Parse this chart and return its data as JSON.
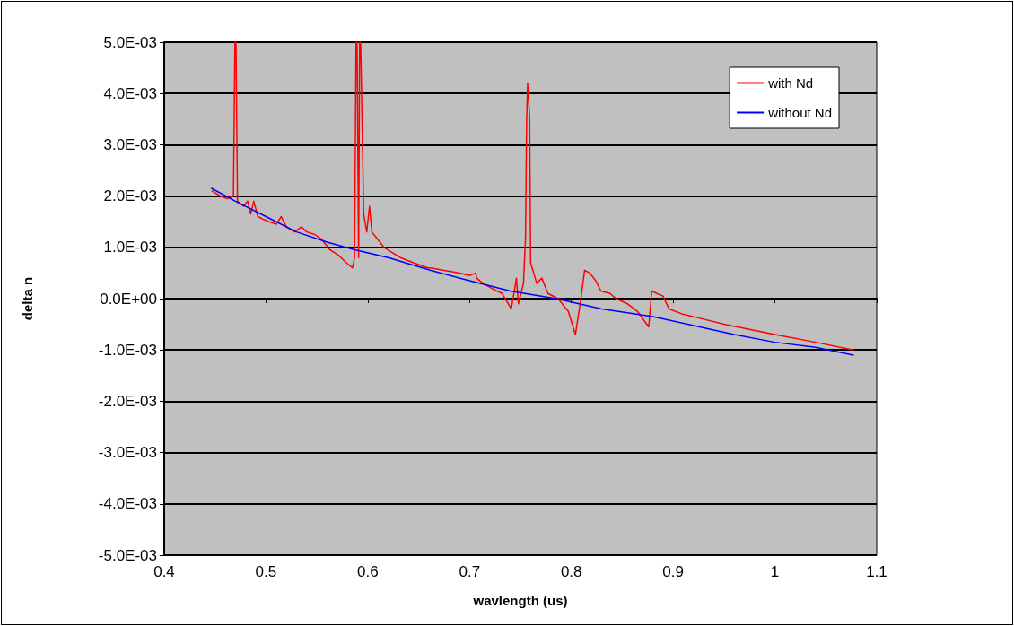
{
  "chart_data": {
    "type": "line",
    "xlabel": "wavlength (us)",
    "ylabel": "delta n",
    "xlim": [
      0.4,
      1.1
    ],
    "xticks": [
      0.4,
      0.5,
      0.6,
      0.7,
      0.8,
      0.9,
      1,
      1.1
    ],
    "ylim": [
      -0.005,
      0.005
    ],
    "yticks": [
      {
        "value": -0.005,
        "label": "-5.0E-03"
      },
      {
        "value": -0.004,
        "label": "-4.0E-03"
      },
      {
        "value": -0.003,
        "label": "-3.0E-03"
      },
      {
        "value": -0.002,
        "label": "-2.0E-03"
      },
      {
        "value": -0.001,
        "label": "-1.0E-03"
      },
      {
        "value": 0,
        "label": "0.0E+00"
      },
      {
        "value": 0.001,
        "label": "1.0E-03"
      },
      {
        "value": 0.002,
        "label": "2.0E-03"
      },
      {
        "value": 0.003,
        "label": "3.0E-03"
      },
      {
        "value": 0.004,
        "label": "4.0E-03"
      },
      {
        "value": 0.005,
        "label": "5.0E-03"
      }
    ],
    "grid": "y",
    "legend": "top right",
    "marker": "none",
    "line_style": "solid",
    "series": [
      {
        "name": "with Nd",
        "color": "#ff0000",
        "x": [
          0.447,
          0.455,
          0.462,
          0.468,
          0.4695,
          0.4705,
          0.472,
          0.478,
          0.482,
          0.485,
          0.488,
          0.492,
          0.497,
          0.503,
          0.51,
          0.515,
          0.52,
          0.528,
          0.535,
          0.54,
          0.548,
          0.555,
          0.563,
          0.571,
          0.579,
          0.585,
          0.587,
          0.5885,
          0.5895,
          0.591,
          0.592,
          0.593,
          0.596,
          0.599,
          0.6017,
          0.604,
          0.61,
          0.616,
          0.624,
          0.632,
          0.645,
          0.659,
          0.662,
          0.675,
          0.69,
          0.7,
          0.706,
          0.707,
          0.713,
          0.722,
          0.732,
          0.741,
          0.744,
          0.746,
          0.748,
          0.753,
          0.755,
          0.756,
          0.757,
          0.759,
          0.76,
          0.766,
          0.771,
          0.777,
          0.787,
          0.797,
          0.804,
          0.809,
          0.813,
          0.818,
          0.824,
          0.829,
          0.838,
          0.844,
          0.855,
          0.865,
          0.876,
          0.879,
          0.884,
          0.89,
          0.896,
          0.909,
          0.93,
          0.95,
          0.975,
          1.0,
          1.04,
          1.077
        ],
        "values": [
          0.0021,
          0.002,
          0.00195,
          0.002,
          0.005,
          0.005,
          0.0019,
          0.0018,
          0.0019,
          0.00165,
          0.0019,
          0.0016,
          0.00155,
          0.0015,
          0.00145,
          0.0016,
          0.0014,
          0.0013,
          0.0014,
          0.0013,
          0.00125,
          0.00115,
          0.00095,
          0.00085,
          0.0007,
          0.0006,
          0.0008,
          0.005,
          0.005,
          0.0008,
          0.005,
          0.005,
          0.00165,
          0.0013,
          0.0018,
          0.0013,
          0.00115,
          0.001,
          0.0009,
          0.0008,
          0.0007,
          0.0006,
          0.0006,
          0.00055,
          0.0005,
          0.00045,
          0.0005,
          0.0004,
          0.0003,
          0.0002,
          0.0001,
          -0.0002,
          0.00015,
          0.0004,
          -0.0001,
          0.0003,
          0.0012,
          0.0034,
          0.0042,
          0.00355,
          0.0007,
          0.0003,
          0.0004,
          0.0001,
          0.0,
          -0.00025,
          -0.0007,
          -5e-05,
          0.00055,
          0.0005,
          0.00035,
          0.00015,
          0.0001,
          0.0,
          -0.0001,
          -0.00025,
          -0.00055,
          0.00015,
          0.0001,
          5e-05,
          -0.0002,
          -0.0003,
          -0.0004,
          -0.0005,
          -0.0006,
          -0.0007,
          -0.00085,
          -0.001
        ]
      },
      {
        "name": "without Nd",
        "color": "#0000ff",
        "x": [
          0.4465,
          0.47,
          0.5,
          0.53,
          0.56,
          0.588,
          0.62,
          0.662,
          0.7,
          0.74,
          0.785,
          0.83,
          0.88,
          0.926,
          0.96,
          1.0,
          1.04,
          1.077
        ],
        "values": [
          0.00215,
          0.0019,
          0.0016,
          0.0013,
          0.0011,
          0.00095,
          0.0008,
          0.00055,
          0.00035,
          0.00015,
          0.0,
          -0.0002,
          -0.00035,
          -0.00055,
          -0.0007,
          -0.00085,
          -0.00095,
          -0.0011
        ]
      }
    ]
  }
}
